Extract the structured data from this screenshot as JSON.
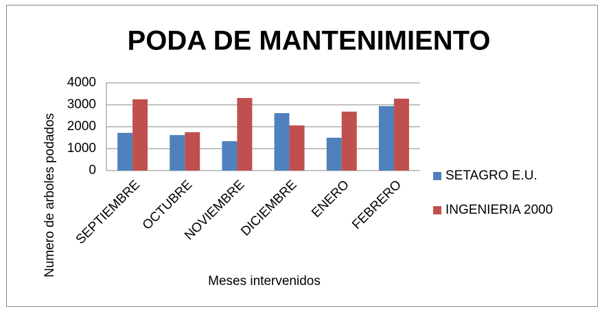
{
  "chart_data": {
    "type": "bar",
    "title": "PODA DE MANTENIMIENTO",
    "x_label": "Meses intervenidos",
    "y_label": "Numero de arboles podados",
    "categories": [
      "SEPTIEMBRE",
      "OCTUBRE",
      "NOVIEMBRE",
      "DICIEMBRE",
      "ENERO",
      "FEBRERO"
    ],
    "series": [
      {
        "name": "SETAGRO E.U.",
        "color": "#4f81bd",
        "values": [
          1720,
          1620,
          1340,
          2620,
          1500,
          2940
        ]
      },
      {
        "name": "INGENIERIA 2000",
        "color": "#c0504d",
        "values": [
          3250,
          1750,
          3310,
          2060,
          2690,
          3280
        ]
      }
    ],
    "ylim": [
      0,
      4000
    ],
    "yticks": [
      0,
      1000,
      2000,
      3000,
      4000
    ],
    "grid": true,
    "legend": "right"
  }
}
